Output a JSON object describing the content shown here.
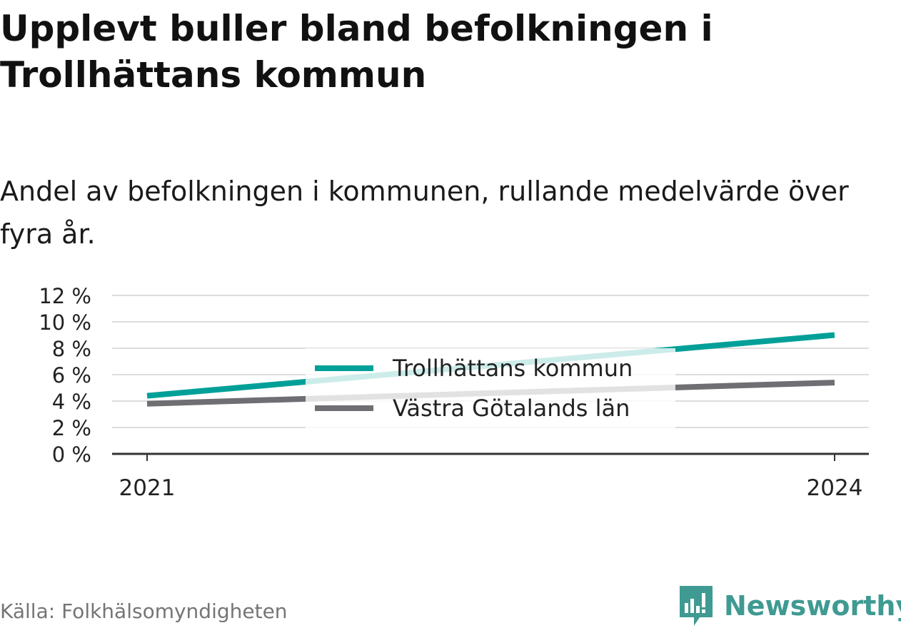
{
  "header": {
    "title": "Upplevt buller bland befolkningen i Trollhättans kommun",
    "subtitle": "Andel av befolkningen i kommunen, rullande medelvärde över fyra år."
  },
  "footer": {
    "source": "Källa: Folkhälsomyndigheten",
    "logo_text": "Newsworthy",
    "logo_icon": "newsworthy-logo-icon",
    "logo_color": "#3f9a92"
  },
  "chart_data": {
    "type": "line",
    "title": "Upplevt buller bland befolkningen i Trollhättans kommun",
    "subtitle": "Andel av befolkningen i kommunen, rullande medelvärde över fyra år.",
    "x": [
      2021,
      2024
    ],
    "x_tick_labels": [
      "2021",
      "2024"
    ],
    "ylim": [
      0,
      12
    ],
    "y_ticks": [
      0,
      2,
      4,
      6,
      8,
      10,
      12
    ],
    "y_tick_labels": [
      "0 %",
      "2 %",
      "4 %",
      "6 %",
      "8 %",
      "10 %",
      "12 %"
    ],
    "grid": true,
    "legend_position": "center",
    "series": [
      {
        "name": "Trollhättans kommun",
        "values": [
          4.4,
          9.0
        ],
        "color": "#00a098"
      },
      {
        "name": "Västra Götalands län",
        "values": [
          3.8,
          5.4
        ],
        "color": "#6e6e73"
      }
    ]
  }
}
